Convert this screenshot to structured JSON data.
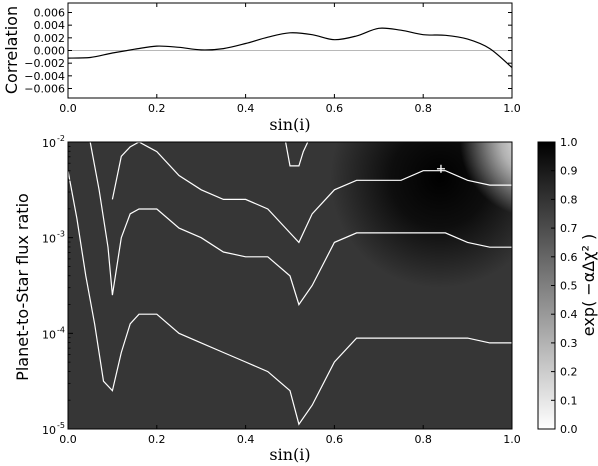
{
  "chart_data": [
    {
      "type": "line",
      "panel": "top",
      "xlabel": "sin(i)",
      "ylabel": "Correlation",
      "xlim": [
        0.0,
        1.0
      ],
      "ylim": [
        -0.0075,
        0.0075
      ],
      "x_ticks": [
        "0.0",
        "0.2",
        "0.4",
        "0.6",
        "0.8",
        "1.0"
      ],
      "y_ticks": [
        "0.006",
        "0.004",
        "0.002",
        "0.000",
        "−0.002",
        "−0.004",
        "−0.006"
      ],
      "y_tick_values": [
        0.006,
        0.004,
        0.002,
        0.0,
        -0.002,
        -0.004,
        -0.006
      ],
      "zero_line": true,
      "series": [
        {
          "x": [
            0.0,
            0.05,
            0.1,
            0.15,
            0.2,
            0.25,
            0.3,
            0.35,
            0.4,
            0.45,
            0.5,
            0.55,
            0.6,
            0.65,
            0.7,
            0.75,
            0.8,
            0.85,
            0.9,
            0.95,
            1.0
          ],
          "y": [
            -0.0012,
            -0.0011,
            -0.0004,
            0.0002,
            0.0007,
            0.0005,
            0.0001,
            0.0003,
            0.0011,
            0.0021,
            0.0028,
            0.0025,
            0.0017,
            0.0023,
            0.0035,
            0.0032,
            0.0025,
            0.0024,
            0.0018,
            0.0003,
            -0.0027
          ]
        }
      ]
    },
    {
      "type": "heatmap",
      "panel": "bottom",
      "xlabel": "sin(i)",
      "ylabel": "Planet-to-Star flux ratio",
      "xlim": [
        0.0,
        1.0
      ],
      "ylim_log10": [
        -5,
        -2
      ],
      "y_scale": "log",
      "x_ticks": [
        "0.0",
        "0.2",
        "0.4",
        "0.6",
        "0.8",
        "1.0"
      ],
      "y_ticks": [
        {
          "base": "10",
          "exp": "-2",
          "value": -2
        },
        {
          "base": "10",
          "exp": "-3",
          "value": -3
        },
        {
          "base": "10",
          "exp": "-4",
          "value": -4
        },
        {
          "base": "10",
          "exp": "-5",
          "value": -5
        }
      ],
      "colorbar": {
        "label": "exp( −αΔχ² )",
        "range": [
          0.0,
          1.0
        ],
        "ticks": [
          "1.0",
          "0.9",
          "0.8",
          "0.7",
          "0.6",
          "0.5",
          "0.4",
          "0.3",
          "0.2",
          "0.1",
          "0.0"
        ],
        "tick_values": [
          1.0,
          0.9,
          0.8,
          0.7,
          0.6,
          0.5,
          0.4,
          0.3,
          0.2,
          0.1,
          0.0
        ],
        "colormap": "gray_r"
      },
      "background_value": 0.8,
      "peak": {
        "x": 0.84,
        "log10y": -2.28,
        "value": 1.0,
        "marker": "+"
      },
      "bright_region": {
        "x": 0.98,
        "log10y": -2.0,
        "value": 0.02
      },
      "contours": [
        {
          "x": [
            0.0,
            0.02,
            0.04,
            0.06,
            0.08,
            0.1,
            0.12,
            0.14,
            0.16,
            0.2,
            0.25,
            0.3,
            0.35,
            0.4,
            0.45,
            0.5,
            0.52,
            0.55,
            0.6,
            0.65,
            0.7,
            0.75,
            0.8,
            0.85,
            0.9,
            0.95,
            1.0
          ],
          "log10y": [
            -2.3,
            -2.8,
            -3.4,
            -3.9,
            -4.5,
            -4.6,
            -4.2,
            -3.9,
            -3.8,
            -3.8,
            -4.0,
            -4.1,
            -4.2,
            -4.3,
            -4.4,
            -4.6,
            -4.95,
            -4.75,
            -4.3,
            -4.05,
            -4.05,
            -4.05,
            -4.05,
            -4.05,
            -4.05,
            -4.1,
            -4.1
          ]
        },
        {
          "x": [
            0.05,
            0.07,
            0.09,
            0.1,
            0.12,
            0.14,
            0.16,
            0.2,
            0.25,
            0.3,
            0.35,
            0.4,
            0.45,
            0.5,
            0.52,
            0.55,
            0.6,
            0.65,
            0.7,
            0.75,
            0.8,
            0.85,
            0.9,
            0.95,
            1.0
          ],
          "log10y": [
            -2.0,
            -2.5,
            -3.1,
            -3.6,
            -3.0,
            -2.75,
            -2.7,
            -2.7,
            -2.9,
            -3.0,
            -3.15,
            -3.2,
            -3.2,
            -3.4,
            -3.7,
            -3.5,
            -3.05,
            -2.95,
            -2.95,
            -2.95,
            -2.95,
            -2.95,
            -3.05,
            -3.1,
            -3.1
          ]
        },
        {
          "x": [
            0.1,
            0.12,
            0.14,
            0.16,
            0.18,
            0.2,
            0.25,
            0.3,
            0.35,
            0.4,
            0.45,
            0.5,
            0.52,
            0.55,
            0.6,
            0.65,
            0.7,
            0.75,
            0.8,
            0.85,
            0.9,
            0.95,
            1.0
          ],
          "log10y": [
            -2.6,
            -2.15,
            -2.05,
            -2.0,
            -2.05,
            -2.1,
            -2.35,
            -2.5,
            -2.6,
            -2.6,
            -2.7,
            -2.95,
            -3.05,
            -2.75,
            -2.5,
            -2.4,
            -2.4,
            -2.4,
            -2.3,
            -2.3,
            -2.4,
            -2.45,
            -2.45
          ]
        },
        {
          "x": [
            0.49,
            0.5,
            0.52,
            0.53,
            0.54
          ],
          "log10y": [
            -2.0,
            -2.25,
            -2.25,
            -2.1,
            -2.0
          ]
        }
      ]
    }
  ]
}
